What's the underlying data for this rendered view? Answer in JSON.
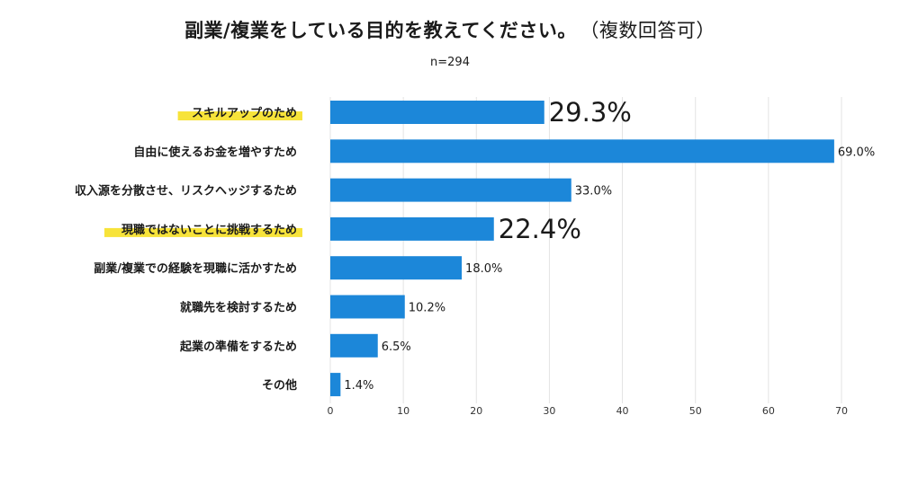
{
  "title": "副業/複業をしている目的を教えてください。",
  "title_note": "（複数回答可）",
  "subtitle": "n=294",
  "chart_data": {
    "type": "bar",
    "orientation": "horizontal",
    "title": "副業/複業をしている目的を教えてください。（複数回答可）",
    "subtitle": "n=294",
    "categories": [
      "スキルアップのため",
      "自由に使えるお金を増やすため",
      "収入源を分散させ、リスクヘッジするため",
      "現職ではないことに挑戦するため",
      "副業/複業での経験を現職に活かすため",
      "就職先を検討するため",
      "起業の準備をするため",
      "その他"
    ],
    "values": [
      29.3,
      69.0,
      33.0,
      22.4,
      18.0,
      10.2,
      6.5,
      1.4
    ],
    "value_labels": [
      "29.3%",
      "69.0%",
      "33.0%",
      "22.4%",
      "18.0%",
      "10.2%",
      "6.5%",
      "1.4%"
    ],
    "highlighted": [
      true,
      false,
      false,
      true,
      false,
      false,
      false,
      false
    ],
    "xlim": [
      0,
      70
    ],
    "xticks": [
      0,
      10,
      20,
      30,
      40,
      50,
      60,
      70
    ],
    "grid": true,
    "bar_color": "#1c87d9",
    "highlight_color": "#f7e33a",
    "grid_color": "#e3e3e3"
  }
}
